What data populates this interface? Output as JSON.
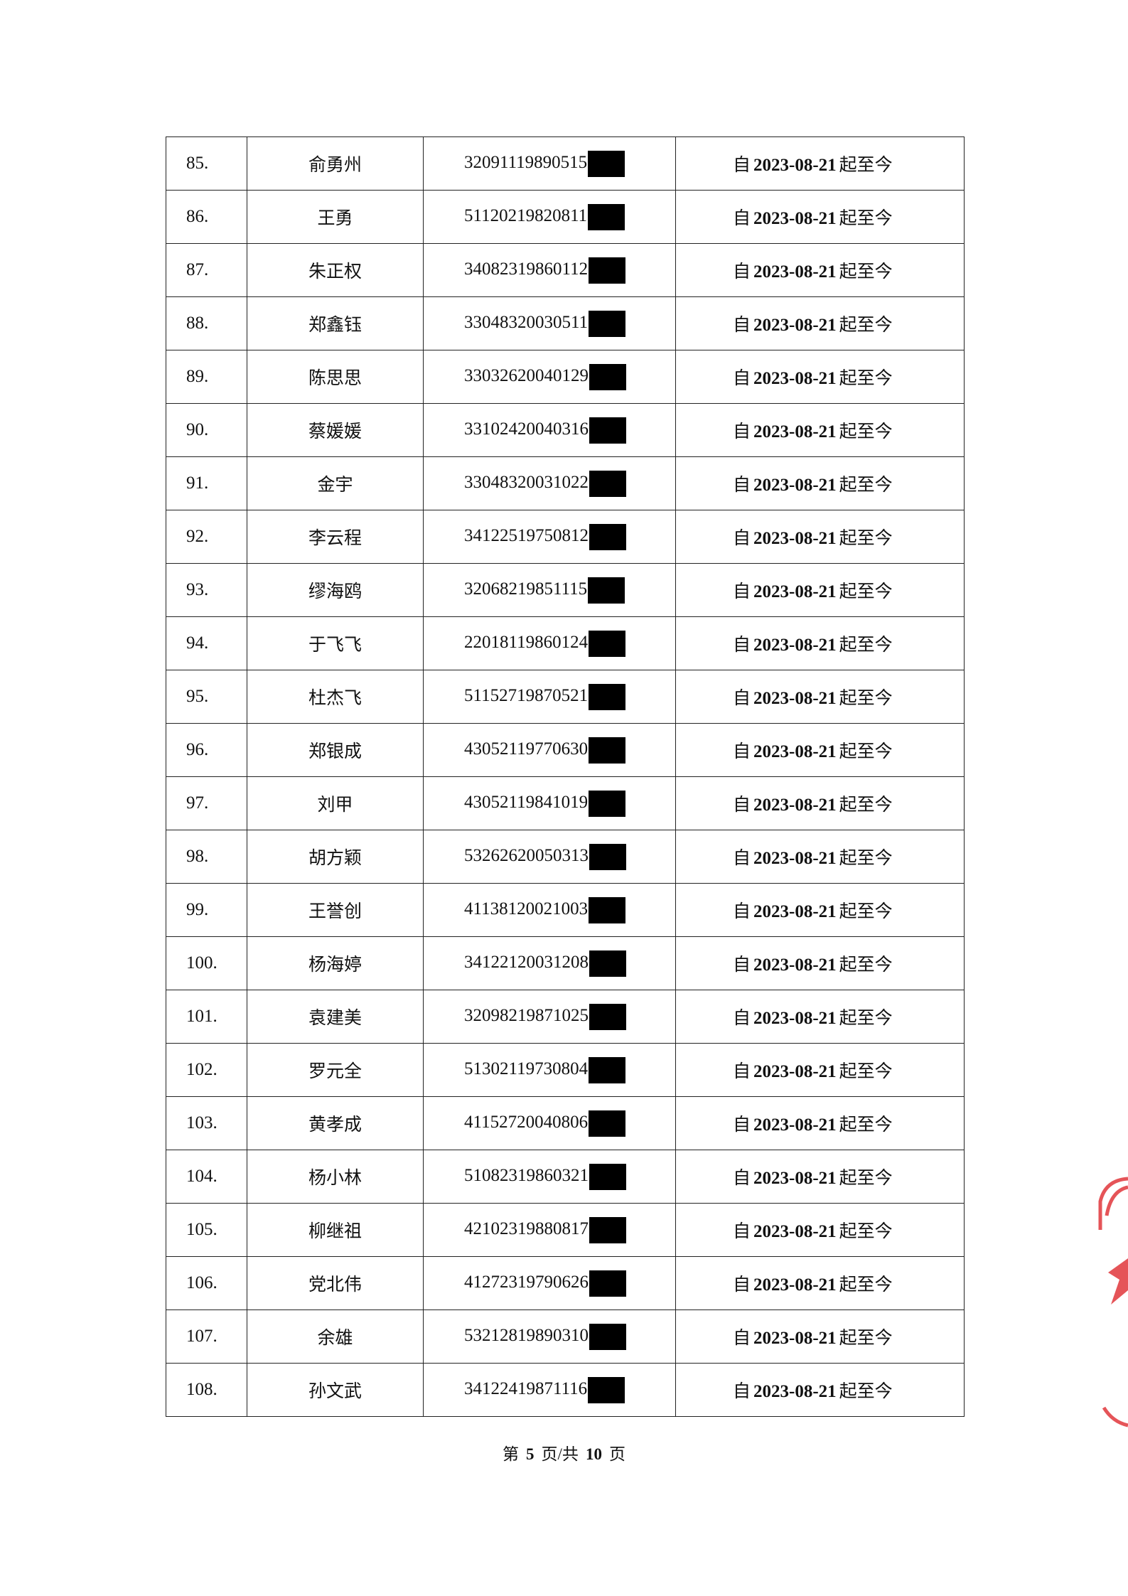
{
  "table": {
    "rows": [
      [
        "85.",
        "俞勇州",
        "32091119890515",
        {
          "prefix": "自",
          "date": "2023-08-21",
          "suffix": "起至今"
        }
      ],
      [
        "86.",
        "王勇",
        "51120219820811",
        {
          "prefix": "自",
          "date": "2023-08-21",
          "suffix": "起至今"
        }
      ],
      [
        "87.",
        "朱正权",
        "34082319860112",
        {
          "prefix": "自",
          "date": "2023-08-21",
          "suffix": "起至今"
        }
      ],
      [
        "88.",
        "郑鑫钰",
        "33048320030511",
        {
          "prefix": "自",
          "date": "2023-08-21",
          "suffix": "起至今"
        }
      ],
      [
        "89.",
        "陈思思",
        "33032620040129",
        {
          "prefix": "自",
          "date": "2023-08-21",
          "suffix": "起至今"
        }
      ],
      [
        "90.",
        "蔡媛媛",
        "33102420040316",
        {
          "prefix": "自",
          "date": "2023-08-21",
          "suffix": "起至今"
        }
      ],
      [
        "91.",
        "金宇",
        "33048320031022",
        {
          "prefix": "自",
          "date": "2023-08-21",
          "suffix": "起至今"
        }
      ],
      [
        "92.",
        "李云程",
        "34122519750812",
        {
          "prefix": "自",
          "date": "2023-08-21",
          "suffix": "起至今"
        }
      ],
      [
        "93.",
        "缪海鸥",
        "32068219851115",
        {
          "prefix": "自",
          "date": "2023-08-21",
          "suffix": "起至今"
        }
      ],
      [
        "94.",
        "于飞飞",
        "22018119860124",
        {
          "prefix": "自",
          "date": "2023-08-21",
          "suffix": "起至今"
        }
      ],
      [
        "95.",
        "杜杰飞",
        "51152719870521",
        {
          "prefix": "自",
          "date": "2023-08-21",
          "suffix": "起至今"
        }
      ],
      [
        "96.",
        "郑银成",
        "43052119770630",
        {
          "prefix": "自",
          "date": "2023-08-21",
          "suffix": "起至今"
        }
      ],
      [
        "97.",
        "刘甲",
        "43052119841019",
        {
          "prefix": "自",
          "date": "2023-08-21",
          "suffix": "起至今"
        }
      ],
      [
        "98.",
        "胡方颖",
        "53262620050313",
        {
          "prefix": "自",
          "date": "2023-08-21",
          "suffix": "起至今"
        }
      ],
      [
        "99.",
        "王誉创",
        "41138120021003",
        {
          "prefix": "自",
          "date": "2023-08-21",
          "suffix": "起至今"
        }
      ],
      [
        "100.",
        "杨海婷",
        "34122120031208",
        {
          "prefix": "自",
          "date": "2023-08-21",
          "suffix": "起至今"
        }
      ],
      [
        "101.",
        "袁建美",
        "32098219871025",
        {
          "prefix": "自",
          "date": "2023-08-21",
          "suffix": "起至今"
        }
      ],
      [
        "102.",
        "罗元全",
        "51302119730804",
        {
          "prefix": "自",
          "date": "2023-08-21",
          "suffix": "起至今"
        }
      ],
      [
        "103.",
        "黄孝成",
        "41152720040806",
        {
          "prefix": "自",
          "date": "2023-08-21",
          "suffix": "起至今"
        }
      ],
      [
        "104.",
        "杨小林",
        "51082319860321",
        {
          "prefix": "自",
          "date": "2023-08-21",
          "suffix": "起至今"
        }
      ],
      [
        "105.",
        "柳继祖",
        "42102319880817",
        {
          "prefix": "自",
          "date": "2023-08-21",
          "suffix": "起至今"
        }
      ],
      [
        "106.",
        "党北伟",
        "41272319790626",
        {
          "prefix": "自",
          "date": "2023-08-21",
          "suffix": "起至今"
        }
      ],
      [
        "107.",
        "余雄",
        "53212819890310",
        {
          "prefix": "自",
          "date": "2023-08-21",
          "suffix": "起至今"
        }
      ],
      [
        "108.",
        "孙文武",
        "34122419871116",
        {
          "prefix": "自",
          "date": "2023-08-21",
          "suffix": "起至今"
        }
      ]
    ]
  },
  "footer": {
    "prefix": "第",
    "page": "5",
    "middle": "页/共",
    "total": "10",
    "suffix": "页"
  }
}
